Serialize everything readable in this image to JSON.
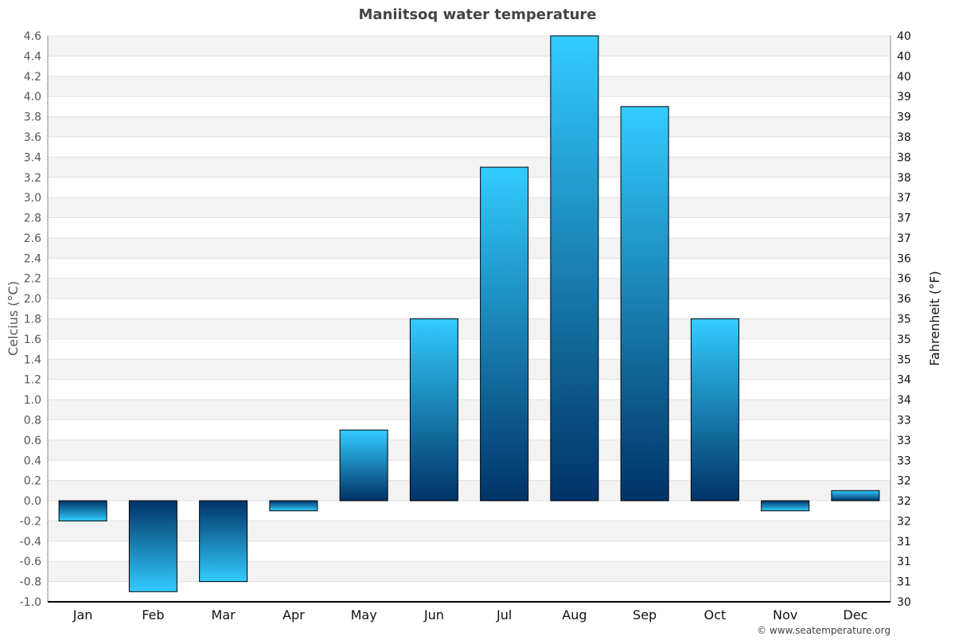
{
  "chart_data": {
    "type": "bar",
    "title": "Maniitsoq water temperature",
    "ylabel": "Celcius (°C)",
    "y2label": "Fahrenheit (°F)",
    "categories": [
      "Jan",
      "Feb",
      "Mar",
      "Apr",
      "May",
      "Jun",
      "Jul",
      "Aug",
      "Sep",
      "Oct",
      "Nov",
      "Dec"
    ],
    "values": [
      -0.2,
      -0.9,
      -0.8,
      -0.1,
      0.7,
      1.8,
      3.3,
      4.6,
      3.9,
      1.8,
      -0.1,
      0.1
    ],
    "ylim": [
      -1.0,
      4.6
    ],
    "ytick_step": 0.2,
    "y2_tick_labels": [
      "40",
      "40",
      "40",
      "39",
      "39",
      "38",
      "38",
      "38",
      "37",
      "37",
      "37",
      "36",
      "36",
      "36",
      "35",
      "35",
      "35",
      "34",
      "34",
      "33",
      "33",
      "33",
      "32",
      "32",
      "32",
      "31",
      "31",
      "31",
      "30"
    ],
    "grid": true,
    "colors": {
      "bar_light": "#33ccff",
      "bar_dark": "#003366",
      "band": "#f3f3f3",
      "title": "#444444"
    }
  },
  "credit": "© www.seatemperature.org"
}
